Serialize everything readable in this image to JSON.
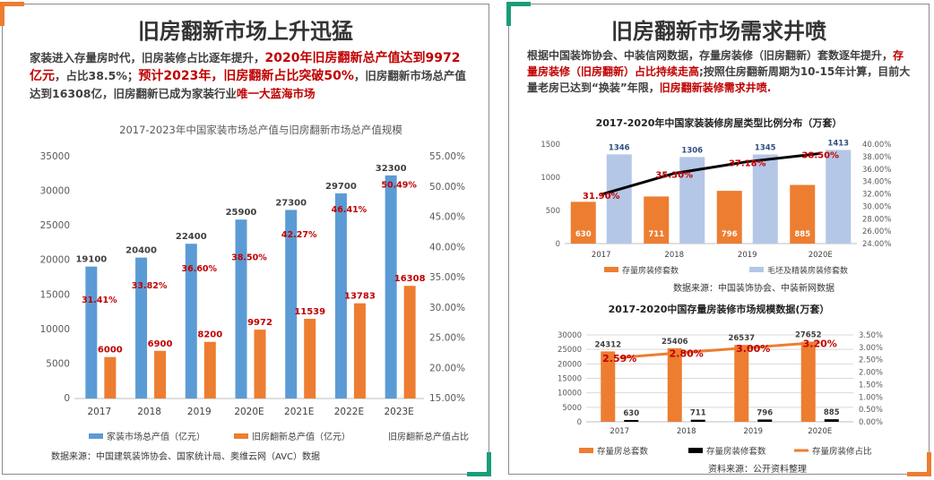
{
  "colors": {
    "blue": "#5b9bd5",
    "orange": "#ed7d31",
    "lightblue": "#b4c7e7",
    "black": "#000000",
    "red": "#c00000",
    "green": "#1a9c7a"
  },
  "left": {
    "title": "旧房翻新市场上升迅猛",
    "intro": {
      "p1": "家装进入存量房时代，旧房装修占比逐年提升，",
      "p2": "2020年旧房翻新总产值达到9972亿元",
      "p3": "，占比38.5%；",
      "p4": "预计2023年，旧房翻新占比突破50%",
      "p5": "，旧房翻新市场总产值达到16308亿，旧房翻新已成为家装行业",
      "p6": "唯一大蓝海市场"
    },
    "source": "数据来源：中国建筑装饰协会、国家统计局、奥维云网（AVC）数据"
  },
  "right": {
    "title": "旧房翻新市场需求井喷",
    "intro": {
      "p1": "根据中国装饰协会、中装信网数据，存量房装修（旧房翻新）套数逐年提升，",
      "p2": "存量房装修（旧房翻新）占比持续走高",
      "p3": ";按照住房翻新周期为10-15年计算，目前大量老房已达到“换装”年限，",
      "p4": "旧房翻新装修需求井喷."
    },
    "source2": "数据来源：中国装饰协会、中装新网数据",
    "source3": "资料来源：公开资料整理"
  },
  "chart_data": [
    {
      "type": "bar",
      "title": "2017-2023年中国家装市场总产值与旧房翻新市场总产值规模",
      "categories": [
        "2017",
        "2018",
        "2019",
        "2020E",
        "2021E",
        "2022E",
        "2023E"
      ],
      "series": [
        {
          "name": "家装市场总产值（亿元）",
          "type": "bar",
          "axis": "left",
          "values": [
            19100,
            20400,
            22400,
            25900,
            27300,
            29700,
            32300
          ],
          "labels": [
            "19100",
            "20400",
            "22400",
            "25900",
            "27300",
            "29700",
            "32300"
          ]
        },
        {
          "name": "旧房翻新总产值（亿元）",
          "type": "bar",
          "axis": "left",
          "values": [
            6000,
            6900,
            8200,
            9972,
            11539,
            13783,
            16308
          ],
          "labels": [
            "6000",
            "6900",
            "8200",
            "9972",
            "11539",
            "13783",
            "16308"
          ]
        },
        {
          "name": "旧房翻新总产值占比",
          "type": "label",
          "axis": "right",
          "values": [
            31.41,
            33.82,
            36.6,
            38.5,
            42.27,
            46.41,
            50.49
          ],
          "labels": [
            "31.41%",
            "33.82%",
            "36.60%",
            "38.50%",
            "42.27%",
            "46.41%",
            "50.49%"
          ]
        }
      ],
      "ylim": [
        0,
        35000
      ],
      "yticks": [
        "0",
        "5000",
        "10000",
        "15000",
        "20000",
        "25000",
        "30000",
        "35000"
      ],
      "y2lim": [
        15,
        55
      ],
      "y2ticks": [
        "15.00%",
        "20.00%",
        "25.00%",
        "30.00%",
        "35.00%",
        "40.00%",
        "45.00%",
        "50.00%",
        "55.00%"
      ],
      "legend_position": "bottom",
      "grid": false
    },
    {
      "type": "bar",
      "title": "2017-2020年中国家装装修房屋类型比例分布（万套）",
      "categories": [
        "2017",
        "2018",
        "2019",
        "2020E"
      ],
      "series": [
        {
          "name": "存量房装修套数",
          "type": "bar",
          "axis": "left",
          "values": [
            630,
            711,
            796,
            885
          ],
          "labels": [
            "630",
            "711",
            "796",
            "885"
          ]
        },
        {
          "name": "毛坯及精装房装修套数",
          "type": "bar",
          "axis": "left",
          "values": [
            1346,
            1306,
            1345,
            1413
          ],
          "labels": [
            "1346",
            "1306",
            "1345",
            "1413"
          ]
        },
        {
          "name": "",
          "type": "line",
          "axis": "right",
          "values": [
            31.9,
            35.3,
            37.18,
            38.5
          ],
          "labels": [
            "31.90%",
            "35.30%",
            "37.18%",
            "38.50%"
          ]
        }
      ],
      "ylim": [
        0,
        1500
      ],
      "yticks": [
        "0",
        "500",
        "1000",
        "1500"
      ],
      "y2lim": [
        24,
        40
      ],
      "y2ticks": [
        "24.00%",
        "26.00%",
        "28.00%",
        "30.00%",
        "32.00%",
        "34.00%",
        "36.00%",
        "38.00%",
        "40.00%"
      ],
      "legend_position": "bottom",
      "grid": false
    },
    {
      "type": "bar",
      "title": "2017-2020中国存量房装修市场规模数据(万套）",
      "categories": [
        "2017",
        "2018",
        "2019",
        "2020E"
      ],
      "series": [
        {
          "name": "存量房总套数",
          "type": "bar",
          "axis": "left",
          "values": [
            24312,
            25406,
            26537,
            27652
          ],
          "labels": [
            "24312",
            "25406",
            "26537",
            "27652"
          ]
        },
        {
          "name": "存量房装修套数",
          "type": "bar",
          "axis": "left",
          "values": [
            630,
            711,
            796,
            885
          ],
          "labels": [
            "630",
            "711",
            "796",
            "885"
          ]
        },
        {
          "name": "存量房装修占比",
          "type": "line",
          "axis": "right",
          "values": [
            2.59,
            2.8,
            3.0,
            3.2
          ],
          "labels": [
            "2.59%",
            "2.80%",
            "3.00%",
            "3.20%"
          ]
        }
      ],
      "ylim": [
        0,
        30000
      ],
      "yticks": [
        "0",
        "5000",
        "10000",
        "15000",
        "20000",
        "25000",
        "30000"
      ],
      "y2lim": [
        0,
        3.5
      ],
      "y2ticks": [
        "0.00%",
        "0.50%",
        "1.00%",
        "1.50%",
        "2.00%",
        "2.50%",
        "3.00%",
        "3.50%"
      ],
      "legend_position": "bottom",
      "grid": true
    }
  ]
}
